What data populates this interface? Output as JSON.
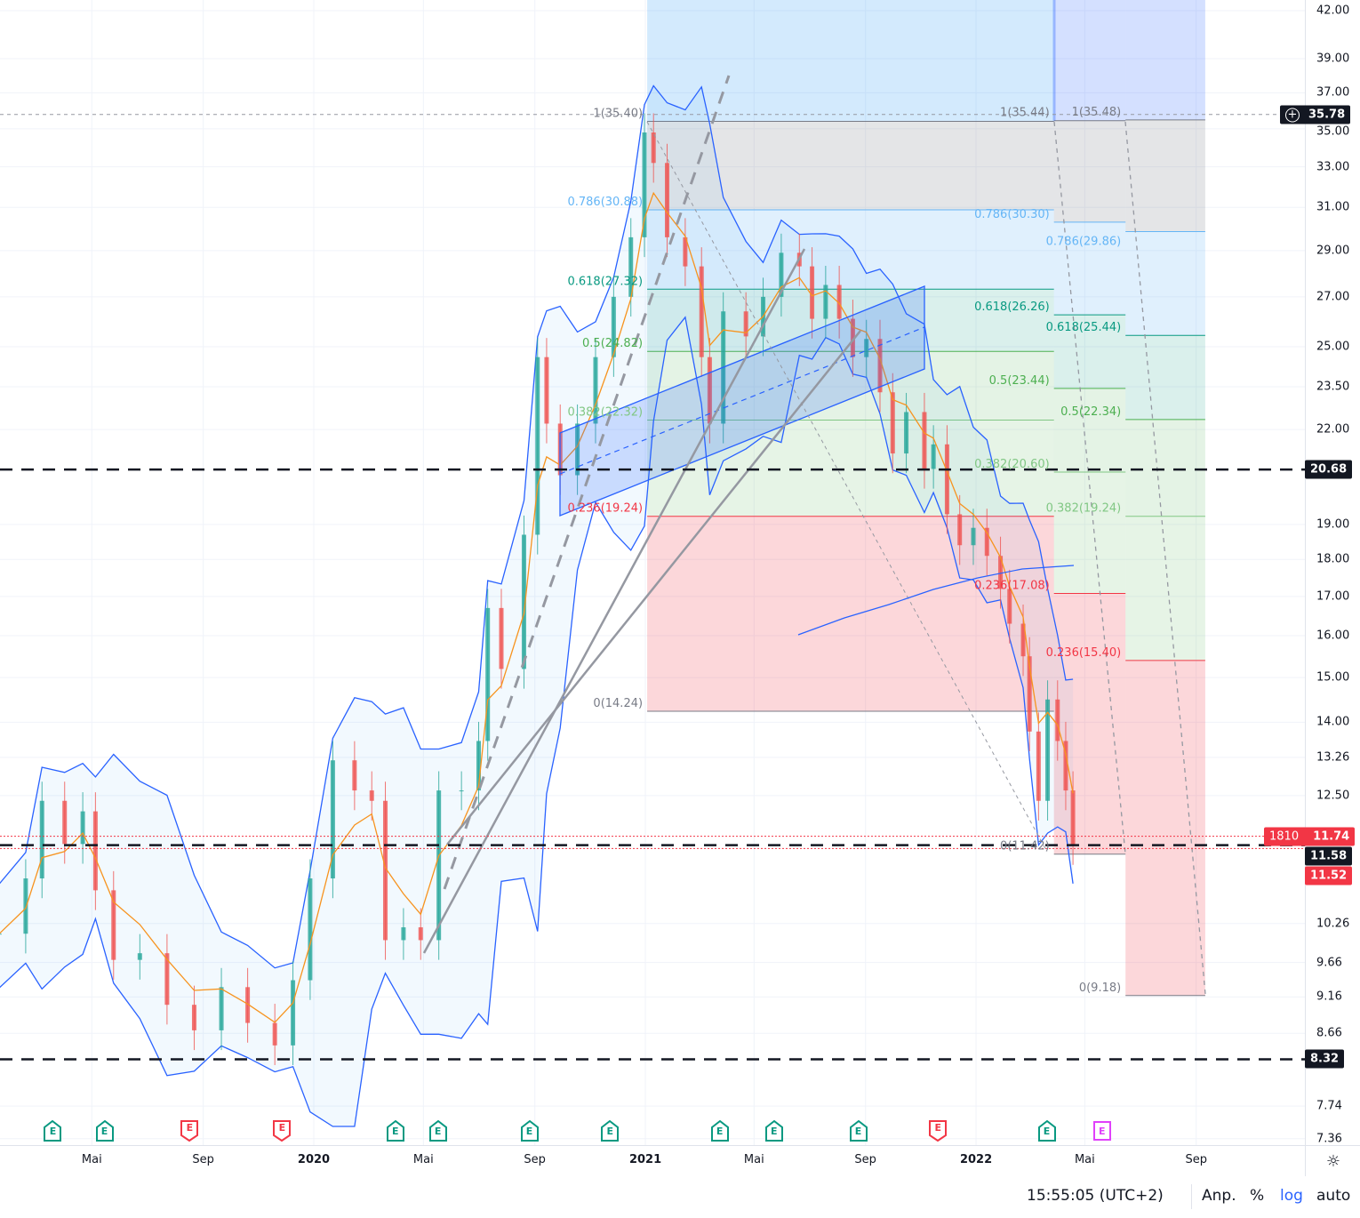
{
  "chart_data": {
    "type": "candlestick",
    "yscale": "log",
    "ylim": [
      7.36,
      42.0
    ],
    "grid": true,
    "series": [
      {
        "dates": [
          "2019-01-19",
          "2019-02-17",
          "2019-03-07",
          "2019-04-01",
          "2019-04-21",
          "2019-05-05",
          "2019-05-25",
          "2019-06-23",
          "2019-07-23",
          "2019-08-22",
          "2019-09-21",
          "2019-10-20",
          "2019-11-19",
          "2019-12-09",
          "2019-12-28",
          "2020-01-22",
          "2020-02-15",
          "2020-03-05",
          "2020-03-20",
          "2020-04-09",
          "2020-04-28",
          "2020-05-18",
          "2020-06-12",
          "2020-07-01",
          "2020-07-11",
          "2020-07-26",
          "2020-08-20",
          "2020-09-04",
          "2020-09-14",
          "2020-09-29",
          "2020-10-18",
          "2020-11-07",
          "2020-11-27",
          "2020-12-16",
          "2020-12-31",
          "2021-01-10",
          "2021-01-25",
          "2021-02-14",
          "2021-03-04",
          "2021-03-13",
          "2021-03-28",
          "2021-04-22",
          "2021-05-11",
          "2021-05-31",
          "2021-06-20",
          "2021-07-04",
          "2021-07-19",
          "2021-08-03",
          "2021-08-18",
          "2021-09-02",
          "2021-09-17",
          "2021-10-01",
          "2021-10-16",
          "2021-11-05",
          "2021-11-15",
          "2021-11-30",
          "2021-12-14",
          "2021-12-29",
          "2022-01-13",
          "2022-01-28",
          "2022-02-07",
          "2022-02-22",
          "2022-03-01",
          "2022-03-11",
          "2022-03-21",
          "2022-04-01",
          "2022-04-10",
          "2022-04-18"
        ],
        "close": [
          10.1,
          11.0,
          12.4,
          11.6,
          12.2,
          10.8,
          9.7,
          9.8,
          9.05,
          8.7,
          9.3,
          8.8,
          8.5,
          9.4,
          11.0,
          13.2,
          12.6,
          12.4,
          10.0,
          10.2,
          10.0,
          12.6,
          12.6,
          13.6,
          16.7,
          15.2,
          18.7,
          24.6,
          22.2,
          20.5,
          22.2,
          24.6,
          27.0,
          29.6,
          34.8,
          33.2,
          29.6,
          28.3,
          24.6,
          22.2,
          26.4,
          25.4,
          27.0,
          28.9,
          28.3,
          26.1,
          27.5,
          26.1,
          24.6,
          25.3,
          23.3,
          21.2,
          22.6,
          20.7,
          21.5,
          19.3,
          18.4,
          18.9,
          18.1,
          17.2,
          16.3,
          15.5,
          13.8,
          12.4,
          14.5,
          13.6,
          12.6,
          11.58
        ]
      }
    ],
    "y_ticks": [
      "42.00",
      "39.00",
      "37.00",
      "35.00",
      "33.00",
      "31.00",
      "29.00",
      "27.00",
      "25.00",
      "23.50",
      "22.00",
      "19.00",
      "18.00",
      "17.00",
      "16.00",
      "15.00",
      "14.00",
      "13.26",
      "12.50",
      "10.26",
      "9.66",
      "9.16",
      "8.66",
      "7.74",
      "7.36"
    ],
    "x_ticks": [
      {
        "label": "Mai",
        "date": "2019-05-01",
        "year": false
      },
      {
        "label": "Sep",
        "date": "2019-09-01",
        "year": false
      },
      {
        "label": "2020",
        "date": "2020-01-01",
        "year": true
      },
      {
        "label": "Mai",
        "date": "2020-05-01",
        "year": false
      },
      {
        "label": "Sep",
        "date": "2020-09-01",
        "year": false
      },
      {
        "label": "2021",
        "date": "2021-01-01",
        "year": true
      },
      {
        "label": "Mai",
        "date": "2021-05-01",
        "year": false
      },
      {
        "label": "Sep",
        "date": "2021-09-01",
        "year": false
      },
      {
        "label": "2022",
        "date": "2022-01-01",
        "year": true
      },
      {
        "label": "Mai",
        "date": "2022-05-01",
        "year": false
      },
      {
        "label": "Sep",
        "date": "2022-09-01",
        "year": false
      }
    ]
  },
  "fibonacci": [
    {
      "start": "2021-01-03",
      "end": "2022-03-28",
      "levels": [
        {
          "ratio": 1,
          "price": 35.4,
          "label": "1(35.40)"
        },
        {
          "ratio": 0.786,
          "price": 30.88,
          "label": "0.786(30.88)"
        },
        {
          "ratio": 0.618,
          "price": 27.32,
          "label": "0.618(27.32)"
        },
        {
          "ratio": 0.5,
          "price": 24.82,
          "label": "0.5(24.82)"
        },
        {
          "ratio": 0.382,
          "price": 22.32,
          "label": "0.382(22.32)"
        },
        {
          "ratio": 0.236,
          "price": 19.24,
          "label": "0.236(19.24)"
        },
        {
          "ratio": 0,
          "price": 14.24,
          "label": "0(14.24)"
        }
      ]
    },
    {
      "start": "2022-03-28",
      "end": "2022-06-15",
      "levels": [
        {
          "ratio": 1,
          "price": 35.44,
          "label": "1(35.44)"
        },
        {
          "ratio": 0.786,
          "price": 30.3,
          "label": "0.786(30.30)"
        },
        {
          "ratio": 0.618,
          "price": 26.26,
          "label": "0.618(26.26)"
        },
        {
          "ratio": 0.5,
          "price": 23.44,
          "label": "0.5(23.44)"
        },
        {
          "ratio": 0.382,
          "price": 20.6,
          "label": "0.382(20.60)"
        },
        {
          "ratio": 0.236,
          "price": 17.08,
          "label": "0.236(17.08)"
        },
        {
          "ratio": 0,
          "price": 11.42,
          "label": "0(11.42)"
        }
      ]
    },
    {
      "start": "2022-06-15",
      "end": "2022-09-11",
      "levels": [
        {
          "ratio": 1,
          "price": 35.48,
          "label": "1(35.48)"
        },
        {
          "ratio": 0.786,
          "price": 29.86,
          "label": "0.786(29.86)"
        },
        {
          "ratio": 0.618,
          "price": 25.44,
          "label": "0.618(25.44)"
        },
        {
          "ratio": 0.5,
          "price": 22.34,
          "label": "0.5(22.34)"
        },
        {
          "ratio": 0.382,
          "price": 19.24,
          "label": "0.382(19.24)"
        },
        {
          "ratio": 0.236,
          "price": 15.4,
          "label": "0.236(15.40)"
        },
        {
          "ratio": 0,
          "price": 9.18,
          "label": "0(9.18)"
        }
      ]
    }
  ],
  "fib_colors": {
    "1": "#787b86",
    "0.786": "#64b5f6",
    "0.618": "#089981",
    "0.5": "#4caf50",
    "0.382": "#81c784",
    "0.236": "#f23645",
    "0": "#787b86"
  },
  "horizontal_lines": [
    20.68,
    11.58,
    8.32
  ],
  "crosshair_price": 35.78,
  "price_tags": {
    "crosshair": {
      "value": "35.78",
      "price": 35.78,
      "icon": "plus-circle-icon"
    },
    "h1": {
      "value": "20.68",
      "price": 20.68
    },
    "last_price": {
      "value": "11.58",
      "price": 11.58
    },
    "h3": {
      "value": "8.32",
      "price": 8.32
    },
    "ask": {
      "value": "11.74",
      "price": 11.74,
      "countdown": "1810"
    },
    "bid": {
      "value": "11.52",
      "price": 11.52
    }
  },
  "earnings_glyph": "E",
  "earnings": [
    {
      "date": "2019-03-19",
      "kind": "beat"
    },
    {
      "date": "2019-05-15",
      "kind": "beat"
    },
    {
      "date": "2019-08-17",
      "kind": "miss"
    },
    {
      "date": "2019-11-27",
      "kind": "miss"
    },
    {
      "date": "2020-03-31",
      "kind": "beat"
    },
    {
      "date": "2020-05-17",
      "kind": "beat"
    },
    {
      "date": "2020-08-26",
      "kind": "beat"
    },
    {
      "date": "2020-11-23",
      "kind": "beat"
    },
    {
      "date": "2021-03-24",
      "kind": "beat"
    },
    {
      "date": "2021-05-23",
      "kind": "beat"
    },
    {
      "date": "2021-08-24",
      "kind": "beat"
    },
    {
      "date": "2021-11-20",
      "kind": "miss"
    },
    {
      "date": "2022-03-20",
      "kind": "beat"
    },
    {
      "date": "2022-05-20",
      "kind": "upcoming"
    }
  ],
  "colors": {
    "up": "#26a69a",
    "down": "#ef5350",
    "ma": "#f7931e",
    "bands": "#2962ff",
    "beat": "#089981",
    "miss": "#f23645",
    "upcoming": "#e040fb"
  },
  "status_bar": {
    "time": "15:55:05 (UTC+2)",
    "adj": "Anp.",
    "percent": "%",
    "log": "log",
    "auto": "auto"
  },
  "settings_icon": "gear-icon"
}
